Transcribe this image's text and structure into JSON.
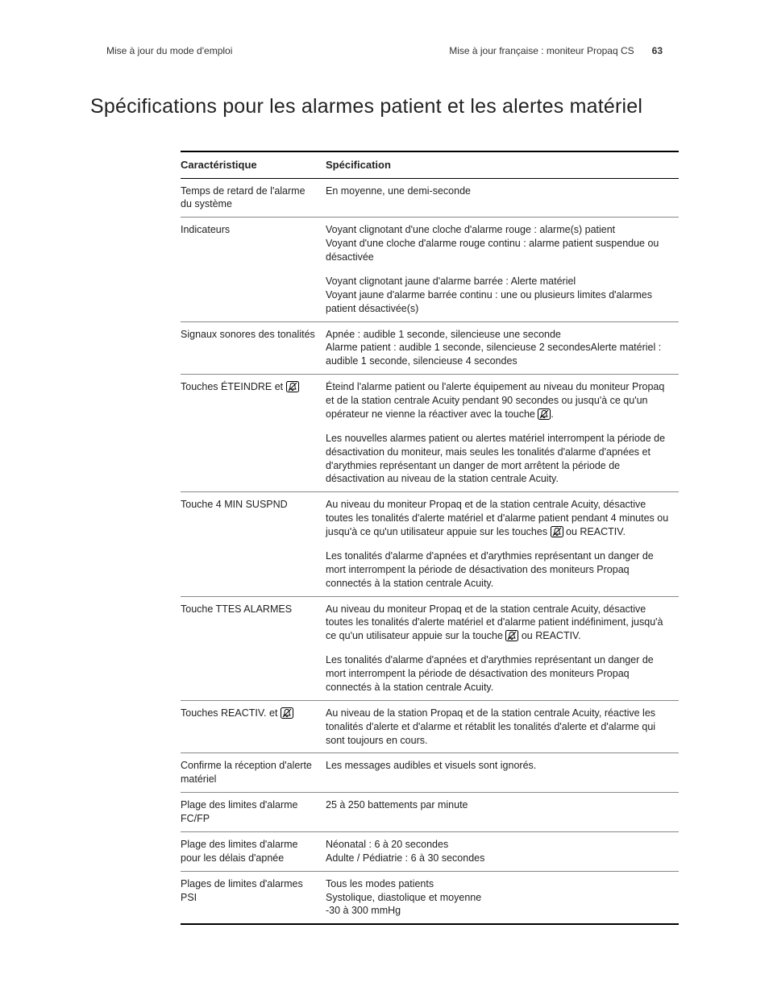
{
  "header": {
    "left": "Mise à jour du mode d'emploi",
    "right_text": "Mise à jour française : moniteur Propaq CS",
    "page_number": "63"
  },
  "title": "Spécifications pour les alarmes patient et les alertes matériel",
  "table": {
    "head_char": "Caractéristique",
    "head_spec": "Spécification",
    "rows": [
      {
        "char": "Temps de retard de l'alarme du système",
        "spec": "En moyenne, une demi-seconde"
      },
      {
        "char": "Indicateurs",
        "spec": "Voyant clignotant d'une cloche d'alarme rouge : alarme(s) patient\nVoyant d'une cloche d'alarme rouge continu : alarme patient suspendue ou désactivée"
      },
      {
        "sub": true,
        "spec": "Voyant clignotant jaune d'alarme barrée : Alerte matériel\nVoyant jaune d'alarme barrée continu : une ou plusieurs limites d'alarmes patient désactivée(s)"
      },
      {
        "char": "Signaux sonores des tonalités",
        "spec": "Apnée : audible 1 seconde, silencieuse une seconde\nAlarme patient : audible 1 seconde, silencieuse 2 secondesAlerte matériel : audible 1 seconde, silencieuse 4 secondes"
      },
      {
        "char": "Touches ÉTEINDRE et",
        "char_icon": "bell-slash-icon",
        "spec": "Éteind l'alarme patient ou l'alerte équipement au niveau du moniteur Propaq et de la station centrale Acuity pendant 90 secondes ou jusqu'à ce qu'un opérateur ne vienne la réactiver avec la touche ",
        "spec_trailing_icon": "bell-slash-icon",
        "spec_trailing_text": "."
      },
      {
        "sub": true,
        "spec": "Les nouvelles alarmes patient ou alertes matériel interrompent la période de désactivation du moniteur, mais seules les tonalités d'alarme d'apnées et d'arythmies représentant un danger de mort arrêtent la période de désactivation au niveau de la station centrale Acuity."
      },
      {
        "char": "Touche 4 MIN SUSPND",
        "spec": "Au niveau du moniteur Propaq et de la station centrale Acuity, désactive toutes les tonalités d'alerte matériel et d'alarme patient pendant 4 minutes ou jusqu'à ce qu'un utilisateur appuie sur les touches ",
        "spec_trailing_icon": "bell-slash-icon",
        "spec_trailing_text": " ou REACTIV."
      },
      {
        "sub": true,
        "spec": "Les tonalités d'alarme d'apnées et d'arythmies représentant un danger de mort interrompent la période de désactivation des moniteurs Propaq connectés à la station centrale Acuity."
      },
      {
        "char": "Touche TTES ALARMES",
        "spec": "Au niveau du moniteur Propaq et de la station centrale Acuity, désactive toutes les tonalités d'alerte matériel et d'alarme patient indéfiniment, jusqu'à ce qu'un utilisateur appuie sur la touche ",
        "spec_trailing_icon": "bell-slash-icon",
        "spec_trailing_text": " ou REACTIV."
      },
      {
        "sub": true,
        "spec": "Les tonalités d'alarme d'apnées et d'arythmies représentant un danger de mort interrompent la période de désactivation des moniteurs Propaq connectés à la station centrale Acuity."
      },
      {
        "char": "Touches REACTIV. et",
        "char_icon": "bell-slash-icon",
        "spec": "Au niveau de la station Propaq et de la station centrale Acuity, réactive les tonalités d'alerte et d'alarme et rétablit les tonalités d'alerte et d'alarme qui sont toujours en cours."
      },
      {
        "char": "Confirme la réception d'alerte matériel",
        "spec": "Les messages audibles et visuels sont ignorés."
      },
      {
        "char": "Plage des limites d'alarme FC/FP",
        "spec": "25 à 250 battements par minute"
      },
      {
        "char": "Plage des limites d'alarme pour les délais d'apnée",
        "spec": "Néonatal : 6 à 20 secondes\nAdulte / Pédiatrie : 6 à 30 secondes"
      },
      {
        "char": "Plages de limites d'alarmes PSI",
        "spec": "Tous les modes patients\nSystolique, diastolique et moyenne\n-30 à 300 mmHg",
        "last": true
      }
    ]
  },
  "icons": {
    "bell-slash-icon": "bell-slash"
  }
}
